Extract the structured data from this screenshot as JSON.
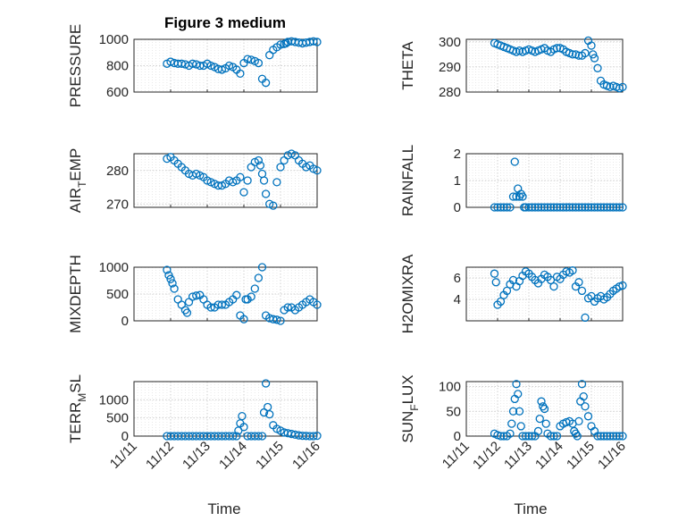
{
  "figure": {
    "title": "Figure 3 medium",
    "marker_color": "#0072BD"
  },
  "shared_x": {
    "label": "Time",
    "ticks": [
      "11/11",
      "11/12",
      "11/13",
      "11/14",
      "11/15",
      "11/16"
    ],
    "range": [
      0,
      5
    ]
  },
  "chart_data": [
    {
      "type": "scatter",
      "id": "pressure",
      "title": "Figure 3 medium",
      "ylabel": {
        "main": "PRESSURE"
      },
      "ylim": [
        600,
        1000
      ],
      "yticks": [
        "600",
        "800",
        "1000"
      ],
      "ytick_values": [
        600,
        800,
        1000
      ],
      "grid": true,
      "x": [
        0.9,
        1.0,
        1.1,
        1.2,
        1.3,
        1.4,
        1.5,
        1.6,
        1.7,
        1.8,
        1.9,
        2.0,
        2.1,
        2.2,
        2.3,
        2.4,
        2.5,
        2.6,
        2.7,
        2.8,
        2.9,
        3.0,
        3.1,
        3.2,
        3.3,
        3.4,
        3.5,
        3.6,
        3.7,
        3.8,
        3.9,
        4.0,
        4.1,
        4.15,
        4.2,
        4.3,
        4.4,
        4.5,
        4.6,
        4.7,
        4.8,
        4.9,
        5.0
      ],
      "y": [
        815,
        830,
        820,
        815,
        815,
        810,
        800,
        815,
        810,
        800,
        800,
        815,
        800,
        790,
        775,
        770,
        780,
        800,
        790,
        770,
        740,
        820,
        850,
        845,
        835,
        820,
        700,
        670,
        880,
        920,
        940,
        960,
        965,
        970,
        980,
        985,
        980,
        975,
        970,
        975,
        980,
        985,
        980
      ]
    },
    {
      "type": "scatter",
      "id": "theta",
      "ylabel": {
        "main": "THETA"
      },
      "ylim": [
        280,
        301
      ],
      "yticks": [
        "280",
        "290",
        "300"
      ],
      "ytick_values": [
        280,
        290,
        300
      ],
      "grid": true,
      "x": [
        0.9,
        1.0,
        1.1,
        1.2,
        1.3,
        1.4,
        1.5,
        1.6,
        1.7,
        1.8,
        1.9,
        2.0,
        2.1,
        2.2,
        2.3,
        2.4,
        2.5,
        2.6,
        2.7,
        2.8,
        2.9,
        3.0,
        3.1,
        3.2,
        3.3,
        3.4,
        3.5,
        3.6,
        3.7,
        3.8,
        3.9,
        4.0,
        4.05,
        4.1,
        4.2,
        4.3,
        4.4,
        4.5,
        4.6,
        4.7,
        4.8,
        4.9,
        5.0
      ],
      "y": [
        299.5,
        299,
        298.5,
        298,
        297.5,
        297,
        296.5,
        296,
        296.5,
        296,
        296.5,
        297,
        296.5,
        296,
        296.5,
        297,
        297.5,
        296.5,
        296,
        297,
        297.5,
        297.5,
        297,
        296,
        295.5,
        295,
        295,
        294.5,
        294.5,
        295.5,
        300.5,
        298.5,
        295,
        293.5,
        289.5,
        284.5,
        283,
        282.5,
        282,
        282.5,
        282,
        281.5,
        282
      ]
    },
    {
      "type": "scatter",
      "id": "air_temp",
      "ylabel": {
        "main": "AIR",
        "sub": "T",
        "rest": "EMP"
      },
      "ylim": [
        269,
        285
      ],
      "yticks": [
        "270",
        "280"
      ],
      "ytick_values": [
        270,
        280
      ],
      "grid": true,
      "x": [
        0.9,
        1.0,
        1.1,
        1.2,
        1.3,
        1.4,
        1.5,
        1.6,
        1.7,
        1.8,
        1.9,
        2.0,
        2.1,
        2.2,
        2.3,
        2.4,
        2.5,
        2.6,
        2.7,
        2.8,
        2.9,
        3.0,
        3.1,
        3.2,
        3.3,
        3.4,
        3.45,
        3.5,
        3.55,
        3.6,
        3.7,
        3.8,
        3.9,
        4.0,
        4.1,
        4.2,
        4.3,
        4.4,
        4.5,
        4.6,
        4.7,
        4.8,
        4.9,
        5.0
      ],
      "y": [
        283.5,
        284,
        283,
        282,
        281,
        280,
        279,
        278.5,
        279,
        278.5,
        278,
        277,
        276.5,
        276,
        275.5,
        275.5,
        276,
        277,
        276.5,
        277,
        278,
        273.5,
        277,
        281,
        282.5,
        283,
        281.5,
        279,
        277,
        273,
        270,
        269.5,
        276.5,
        281,
        283,
        284.5,
        285,
        284.5,
        283,
        282,
        281,
        281.5,
        280.5,
        280
      ]
    },
    {
      "type": "scatter",
      "id": "rainfall",
      "ylabel": {
        "main": "RAINFALL"
      },
      "ylim": [
        0,
        2
      ],
      "yticks": [
        "0",
        "1",
        "2"
      ],
      "ytick_values": [
        0,
        1,
        2
      ],
      "grid": true,
      "x": [
        0.9,
        1.0,
        1.1,
        1.2,
        1.3,
        1.4,
        1.5,
        1.55,
        1.6,
        1.65,
        1.7,
        1.75,
        1.8,
        1.85,
        1.9,
        2.0,
        2.1,
        2.2,
        2.3,
        2.4,
        2.5,
        2.6,
        2.7,
        2.8,
        2.9,
        3.0,
        3.1,
        3.2,
        3.3,
        3.4,
        3.5,
        3.6,
        3.7,
        3.8,
        3.9,
        4.0,
        4.1,
        4.2,
        4.3,
        4.4,
        4.5,
        4.6,
        4.7,
        4.8,
        4.9,
        5.0
      ],
      "y": [
        0,
        0,
        0,
        0,
        0,
        0,
        0.4,
        1.7,
        0.4,
        0.7,
        0.4,
        0.5,
        0.4,
        0,
        0,
        0,
        0,
        0,
        0,
        0,
        0,
        0,
        0,
        0,
        0,
        0,
        0,
        0,
        0,
        0,
        0,
        0,
        0,
        0,
        0,
        0,
        0,
        0,
        0,
        0,
        0,
        0,
        0,
        0,
        0,
        0
      ]
    },
    {
      "type": "scatter",
      "id": "mixdepth",
      "ylabel": {
        "main": "MIXDEPTH"
      },
      "ylim": [
        0,
        1000
      ],
      "yticks": [
        "0",
        "500",
        "1000"
      ],
      "ytick_values": [
        0,
        500,
        1000
      ],
      "grid": true,
      "x": [
        0.9,
        0.95,
        1.0,
        1.05,
        1.1,
        1.2,
        1.3,
        1.4,
        1.45,
        1.5,
        1.6,
        1.7,
        1.8,
        1.9,
        2.0,
        2.1,
        2.2,
        2.3,
        2.4,
        2.5,
        2.6,
        2.7,
        2.8,
        2.9,
        3.0,
        3.05,
        3.1,
        3.2,
        3.3,
        3.4,
        3.5,
        3.6,
        3.7,
        3.8,
        3.9,
        4.0,
        4.1,
        4.2,
        4.3,
        4.4,
        4.5,
        4.6,
        4.7,
        4.8,
        4.9,
        5.0
      ],
      "y": [
        950,
        850,
        780,
        700,
        600,
        400,
        300,
        200,
        150,
        350,
        450,
        470,
        480,
        400,
        300,
        250,
        250,
        300,
        300,
        300,
        350,
        400,
        480,
        100,
        30,
        400,
        400,
        450,
        600,
        800,
        1000,
        100,
        50,
        30,
        20,
        0,
        200,
        250,
        250,
        200,
        250,
        300,
        350,
        400,
        350,
        300
      ]
    },
    {
      "type": "scatter",
      "id": "h2omixra",
      "ylabel": {
        "main": "H2OMIXRA"
      },
      "ylim": [
        2,
        7
      ],
      "yticks": [
        "4",
        "6"
      ],
      "ytick_values": [
        4,
        6
      ],
      "grid": true,
      "x": [
        0.9,
        0.95,
        1.0,
        1.1,
        1.2,
        1.3,
        1.4,
        1.5,
        1.6,
        1.7,
        1.8,
        1.9,
        2.0,
        2.1,
        2.2,
        2.3,
        2.4,
        2.5,
        2.6,
        2.7,
        2.8,
        2.9,
        3.0,
        3.1,
        3.2,
        3.3,
        3.4,
        3.5,
        3.6,
        3.7,
        3.8,
        3.9,
        4.0,
        4.1,
        4.2,
        4.3,
        4.4,
        4.5,
        4.6,
        4.7,
        4.8,
        4.9,
        5.0
      ],
      "y": [
        6.4,
        5.6,
        3.5,
        3.8,
        4.4,
        4.8,
        5.4,
        5.8,
        5.2,
        5.7,
        6.2,
        6.6,
        6.4,
        6.1,
        5.8,
        5.5,
        5.9,
        6.3,
        6.1,
        5.8,
        5.2,
        6.1,
        5.9,
        6.3,
        6.6,
        6.5,
        6.7,
        5.2,
        5.6,
        4.8,
        2.3,
        4.1,
        4.3,
        3.8,
        4.1,
        4.3,
        4.0,
        4.2,
        4.5,
        4.8,
        5.0,
        5.2,
        5.3
      ]
    },
    {
      "type": "scatter",
      "id": "terr_msl",
      "ylabel": {
        "main": "TERR",
        "sub": "M",
        "rest": "SL"
      },
      "ylim": [
        0,
        1500
      ],
      "yticks": [
        "0",
        "500",
        "1000"
      ],
      "ytick_values": [
        0,
        500,
        1000
      ],
      "grid": true,
      "x": [
        0.9,
        1.0,
        1.1,
        1.2,
        1.3,
        1.4,
        1.5,
        1.6,
        1.7,
        1.8,
        1.9,
        2.0,
        2.1,
        2.2,
        2.3,
        2.4,
        2.5,
        2.6,
        2.7,
        2.8,
        2.85,
        2.9,
        2.95,
        3.0,
        3.1,
        3.2,
        3.3,
        3.4,
        3.5,
        3.55,
        3.6,
        3.65,
        3.7,
        3.8,
        3.9,
        4.0,
        4.1,
        4.2,
        4.3,
        4.4,
        4.5,
        4.6,
        4.7,
        4.8,
        4.9,
        5.0
      ],
      "y": [
        0,
        0,
        0,
        0,
        0,
        0,
        0,
        0,
        0,
        0,
        0,
        0,
        0,
        0,
        0,
        0,
        0,
        0,
        0,
        0,
        150,
        350,
        550,
        250,
        0,
        0,
        0,
        0,
        0,
        650,
        1450,
        800,
        600,
        300,
        200,
        150,
        100,
        80,
        60,
        40,
        20,
        10,
        5,
        0,
        0,
        10
      ]
    },
    {
      "type": "scatter",
      "id": "sun_flux",
      "ylabel": {
        "main": "SUN",
        "sub": "F",
        "rest": "LUX"
      },
      "ylim": [
        0,
        110
      ],
      "yticks": [
        "0",
        "50",
        "100"
      ],
      "ytick_values": [
        0,
        50,
        100
      ],
      "grid": true,
      "x": [
        0.9,
        1.0,
        1.1,
        1.2,
        1.3,
        1.4,
        1.45,
        1.5,
        1.55,
        1.6,
        1.65,
        1.7,
        1.75,
        1.8,
        1.9,
        2.0,
        2.1,
        2.2,
        2.3,
        2.35,
        2.4,
        2.45,
        2.5,
        2.55,
        2.6,
        2.7,
        2.8,
        2.9,
        3.0,
        3.1,
        3.2,
        3.3,
        3.4,
        3.45,
        3.5,
        3.55,
        3.6,
        3.65,
        3.7,
        3.75,
        3.8,
        3.9,
        4.0,
        4.1,
        4.2,
        4.3,
        4.4,
        4.5,
        4.6,
        4.7,
        4.8,
        4.9,
        5.0
      ],
      "y": [
        5,
        2,
        0,
        0,
        0,
        5,
        25,
        50,
        75,
        105,
        85,
        50,
        20,
        0,
        0,
        0,
        0,
        0,
        10,
        35,
        70,
        60,
        55,
        25,
        5,
        0,
        0,
        0,
        20,
        25,
        28,
        30,
        25,
        10,
        5,
        0,
        30,
        70,
        105,
        80,
        60,
        40,
        20,
        10,
        0,
        0,
        0,
        0,
        0,
        0,
        0,
        0,
        0
      ]
    }
  ]
}
